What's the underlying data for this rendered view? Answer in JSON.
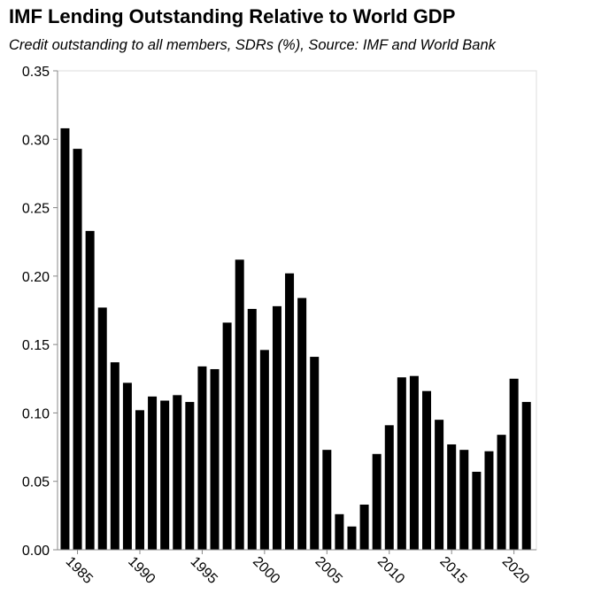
{
  "chart_data": {
    "type": "bar",
    "title": "IMF Lending Outstanding Relative to World GDP",
    "subtitle": "Credit outstanding to all members, SDRs (%), Source: IMF and World Bank",
    "xlabel": "",
    "ylabel": "",
    "x": [
      1984,
      1985,
      1986,
      1987,
      1988,
      1989,
      1990,
      1991,
      1992,
      1993,
      1994,
      1995,
      1996,
      1997,
      1998,
      1999,
      2000,
      2001,
      2002,
      2003,
      2004,
      2005,
      2006,
      2007,
      2008,
      2009,
      2010,
      2011,
      2012,
      2013,
      2014,
      2015,
      2016,
      2017,
      2018,
      2019,
      2020,
      2021
    ],
    "values": [
      0.308,
      0.293,
      0.233,
      0.177,
      0.137,
      0.122,
      0.102,
      0.112,
      0.109,
      0.113,
      0.108,
      0.134,
      0.132,
      0.166,
      0.212,
      0.176,
      0.146,
      0.178,
      0.202,
      0.184,
      0.141,
      0.073,
      0.026,
      0.017,
      0.033,
      0.07,
      0.091,
      0.126,
      0.127,
      0.116,
      0.095,
      0.077,
      0.073,
      0.057,
      0.072,
      0.084,
      0.125,
      0.108
    ],
    "xlim": [
      1983.4,
      2021.8
    ],
    "ylim": [
      0,
      0.35
    ],
    "yticks": [
      0.0,
      0.05,
      0.1,
      0.15,
      0.2,
      0.25,
      0.3,
      0.35
    ],
    "ytick_labels": [
      "0.00",
      "0.05",
      "0.10",
      "0.15",
      "0.20",
      "0.25",
      "0.30",
      "0.35"
    ],
    "xticks": [
      1985,
      1990,
      1995,
      2000,
      2005,
      2010,
      2015,
      2020
    ],
    "xtick_labels": [
      "1985",
      "1990",
      "1995",
      "2000",
      "2005",
      "2010",
      "2015",
      "2020"
    ],
    "grid": false,
    "legend": "none",
    "colors": {
      "bar": "#000000",
      "axis": "#888888",
      "frame": "#dddddd"
    }
  }
}
